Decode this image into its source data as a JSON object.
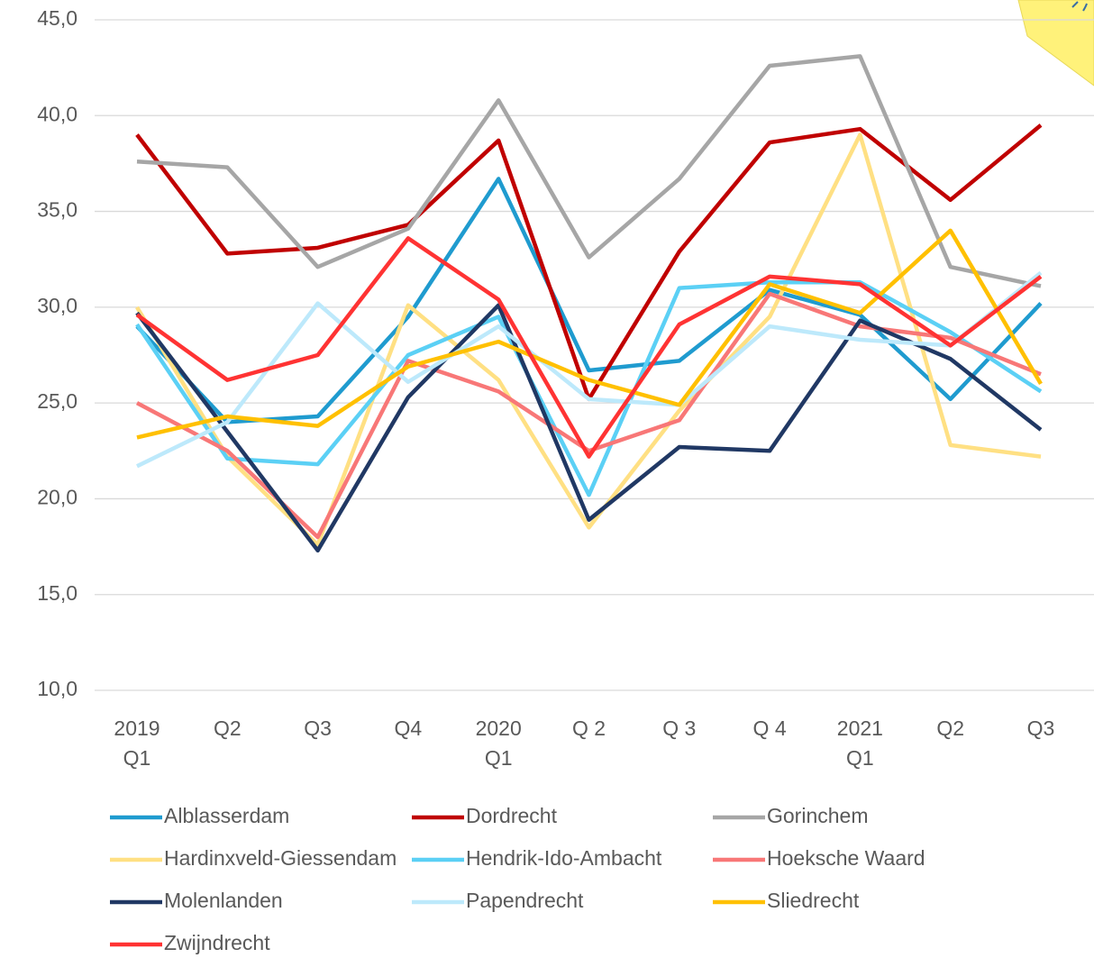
{
  "chart_data": {
    "type": "line",
    "categories": [
      "2019\nQ1",
      "Q2",
      "Q3",
      "Q4",
      "2020\nQ1",
      "Q 2",
      "Q 3",
      "Q 4",
      "2021\nQ1",
      "Q2",
      "Q3"
    ],
    "ylim": [
      10,
      45
    ],
    "yticks": [
      {
        "value": 10,
        "label": "10,0"
      },
      {
        "value": 15,
        "label": "15,0"
      },
      {
        "value": 20,
        "label": "20,0"
      },
      {
        "value": 25,
        "label": "25,0"
      },
      {
        "value": 30,
        "label": "30,0"
      },
      {
        "value": 35,
        "label": "35,0"
      },
      {
        "value": 40,
        "label": "40,0"
      },
      {
        "value": 45,
        "label": "45,0"
      }
    ],
    "grid": true,
    "legend": "bottom",
    "series": [
      {
        "name": "Alblasserdam",
        "color": "#1f9bcf",
        "values": [
          29.0,
          24.0,
          24.3,
          29.5,
          36.7,
          26.7,
          27.2,
          30.9,
          29.6,
          25.2,
          30.2
        ]
      },
      {
        "name": "Dordrecht",
        "color": "#c00000",
        "values": [
          39.0,
          32.8,
          33.1,
          34.3,
          38.7,
          25.2,
          32.9,
          38.6,
          39.3,
          35.6,
          39.5
        ]
      },
      {
        "name": "Gorinchem",
        "color": "#a6a6a6",
        "values": [
          37.6,
          37.3,
          32.1,
          34.1,
          40.8,
          32.6,
          36.7,
          42.6,
          43.1,
          32.1,
          31.1
        ]
      },
      {
        "name": "Hardinxveld-Giessendam",
        "color": "#ffe083",
        "values": [
          30.0,
          22.2,
          17.6,
          30.1,
          26.2,
          18.5,
          24.6,
          29.5,
          39.0,
          22.8,
          22.2
        ]
      },
      {
        "name": "Hendrik-Ido-Ambacht",
        "color": "#5bd0f5",
        "values": [
          29.1,
          22.1,
          21.8,
          27.5,
          29.5,
          20.2,
          31.0,
          31.3,
          31.3,
          28.7,
          25.6
        ]
      },
      {
        "name": "Hoeksche Waard",
        "color": "#f87777",
        "values": [
          25.0,
          22.5,
          18.0,
          27.2,
          25.6,
          22.5,
          24.1,
          30.7,
          29.0,
          28.4,
          26.5
        ]
      },
      {
        "name": "Molenlanden",
        "color": "#203864",
        "values": [
          29.7,
          23.5,
          17.3,
          25.3,
          30.1,
          18.9,
          22.7,
          22.5,
          29.3,
          27.3,
          23.6
        ]
      },
      {
        "name": "Papendrecht",
        "color": "#bde9fb",
        "values": [
          21.7,
          24.0,
          30.2,
          26.1,
          29.0,
          25.2,
          24.9,
          29.0,
          28.3,
          28.0,
          31.8
        ]
      },
      {
        "name": "Sliedrecht",
        "color": "#ffc000",
        "values": [
          23.2,
          24.3,
          23.8,
          26.9,
          28.2,
          26.2,
          24.9,
          31.2,
          29.7,
          34.0,
          26.0
        ]
      },
      {
        "name": "Zwijndrecht",
        "color": "#ff3333",
        "values": [
          29.6,
          26.2,
          27.5,
          33.6,
          30.4,
          22.2,
          29.1,
          31.6,
          31.2,
          28.0,
          31.6
        ]
      }
    ]
  }
}
